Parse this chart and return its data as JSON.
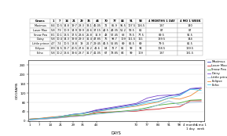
{
  "xlabel": "DAYS",
  "ylabel": "OZ/GRAMS",
  "x_labels": [
    "1",
    "7",
    "14",
    "21",
    "29",
    "35",
    "44",
    "70",
    "77",
    "84",
    "91",
    "98",
    "4 months\n1 day",
    "4 mo 1\nweek"
  ],
  "x_values": [
    1,
    7,
    14,
    21,
    29,
    35,
    44,
    70,
    77,
    84,
    91,
    98,
    105,
    112
  ],
  "table_col_labels": [
    "Grams",
    "1",
    "7",
    "14",
    "21",
    "29",
    "35",
    "44",
    "70",
    "77",
    "84",
    "91",
    "98",
    "4 MONTHS 1 DAY",
    "4 MO 1 WEEK"
  ],
  "table_rows": [
    [
      "Maximus",
      "8.4",
      "10.5",
      "14.8",
      "19.7",
      "28.3",
      "33.1",
      "45.05",
      "72",
      "85.9",
      "95.5",
      "107.5",
      "116.5",
      "137",
      "140"
    ],
    [
      "Laser Max",
      "5.8",
      "7.9",
      "10.9",
      "14.9",
      "19.9",
      "21.6",
      "37.15",
      "42.5",
      "48.35",
      "51.2",
      "58.5",
      "61",
      "87",
      "87"
    ],
    [
      "Snow Pea",
      "8.1",
      "10.1",
      "13.5",
      "17.5",
      "23.6",
      "25.8",
      "31.9",
      "48",
      "57.45",
      "68",
      "73.5",
      "77.5",
      "89.5",
      "91.5"
    ],
    [
      "Daisy",
      "5.8",
      "10.4",
      "14.3",
      "19.8",
      "29.3",
      "31.4",
      "47.85",
      "76",
      "98.7",
      "109",
      "111.5",
      "111",
      "139.5",
      "144"
    ],
    [
      "Little prince",
      "4.7",
      "7.4",
      "10.5",
      "13.8",
      "19",
      "21.7",
      "29.45",
      "45.5",
      "52.85",
      "69",
      "86.5",
      "69",
      "79.5",
      "81.5"
    ],
    [
      "Eclipse",
      "8.9",
      "11.5",
      "16.7",
      "20.5",
      "27.6",
      "31.2",
      "41.6",
      "64",
      "72.7",
      "81",
      "99",
      "94",
      "108.5",
      "139.5"
    ],
    [
      "Echo",
      "5.8",
      "10.2",
      "13.6",
      "19.6",
      "28.7",
      "31.7",
      "41.05",
      "67",
      "78.85",
      "84",
      "99",
      "109",
      "137",
      "131.5"
    ]
  ],
  "series": [
    {
      "name": "Maximus",
      "color": "#3344bb",
      "values": [
        8.4,
        10.5,
        14.8,
        19.7,
        28.3,
        33.1,
        45.05,
        72,
        85.9,
        95.5,
        107.5,
        116.5,
        137,
        140
      ]
    },
    {
      "name": "Laser Max",
      "color": "#cc2222",
      "values": [
        5.8,
        7.9,
        10.9,
        14.9,
        19.9,
        21.6,
        37.15,
        42.5,
        48.35,
        51.2,
        58.5,
        61,
        87,
        87
      ]
    },
    {
      "name": "Snow Pea",
      "color": "#44aa33",
      "values": [
        8.1,
        10.1,
        13.5,
        17.5,
        23.6,
        25.8,
        31.9,
        48,
        57.45,
        68,
        73.5,
        77.5,
        89.5,
        91.5
      ]
    },
    {
      "name": "Daisy",
      "color": "#7744cc",
      "values": [
        5.8,
        10.4,
        14.3,
        19.8,
        29.3,
        31.4,
        47.85,
        76,
        98.7,
        109,
        111.5,
        111,
        139.5,
        144
      ]
    },
    {
      "name": "Little prince",
      "color": "#99bbdd",
      "values": [
        4.7,
        7.4,
        10.5,
        13.8,
        19,
        21.7,
        29.45,
        45.5,
        52.85,
        69,
        86.5,
        69,
        79.5,
        81.5
      ]
    },
    {
      "name": "Eclipse",
      "color": "#ee8833",
      "values": [
        8.9,
        11.5,
        16.7,
        20.5,
        27.6,
        31.2,
        41.6,
        64,
        72.7,
        81,
        99,
        94,
        108.5,
        139.5
      ]
    },
    {
      "name": "Echo",
      "color": "#44ccee",
      "values": [
        5.8,
        10.2,
        13.6,
        19.6,
        28.7,
        31.7,
        41.05,
        67,
        78.85,
        84,
        99,
        109,
        137,
        131.5
      ]
    }
  ],
  "ylim": [
    0,
    260
  ],
  "yticks": [
    0,
    40,
    80,
    120,
    160,
    200,
    240
  ],
  "background_color": "#ffffff",
  "grid_color": "#dddddd"
}
